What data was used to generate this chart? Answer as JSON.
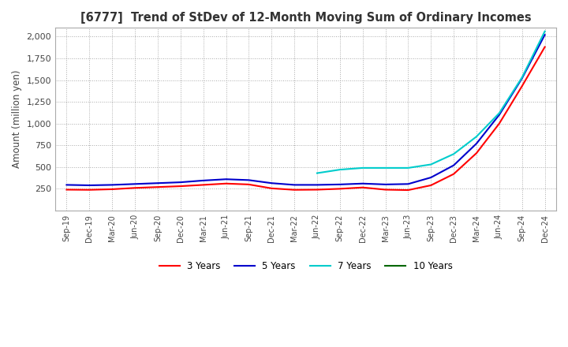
{
  "title": "[6777]  Trend of StDev of 12-Month Moving Sum of Ordinary Incomes",
  "ylabel": "Amount (million yen)",
  "legend_labels": [
    "3 Years",
    "5 Years",
    "7 Years",
    "10 Years"
  ],
  "legend_colors": [
    "#ff0000",
    "#0000cc",
    "#00cccc",
    "#006600"
  ],
  "x_tick_labels": [
    "Sep-19",
    "Dec-19",
    "Mar-20",
    "Jun-20",
    "Sep-20",
    "Dec-20",
    "Mar-21",
    "Jun-21",
    "Sep-21",
    "Dec-21",
    "Mar-22",
    "Jun-22",
    "Sep-22",
    "Dec-22",
    "Mar-23",
    "Jun-23",
    "Sep-23",
    "Dec-23",
    "Mar-24",
    "Jun-24",
    "Sep-24",
    "Dec-24"
  ],
  "ylim": [
    0,
    2100
  ],
  "yticks": [
    250,
    500,
    750,
    1000,
    1250,
    1500,
    1750,
    2000
  ],
  "series_3y": [
    240,
    238,
    245,
    260,
    270,
    280,
    295,
    310,
    300,
    255,
    238,
    240,
    250,
    265,
    240,
    235,
    290,
    420,
    660,
    1000,
    1430,
    1880
  ],
  "series_5y": [
    295,
    290,
    295,
    305,
    315,
    325,
    345,
    360,
    350,
    315,
    295,
    295,
    300,
    310,
    300,
    305,
    380,
    520,
    770,
    1100,
    1520,
    2020
  ],
  "series_7y": [
    null,
    null,
    null,
    null,
    null,
    null,
    null,
    null,
    null,
    null,
    null,
    430,
    470,
    490,
    490,
    490,
    530,
    650,
    850,
    1120,
    1530,
    2060
  ],
  "series_10y": [
    null,
    null,
    null,
    null,
    null,
    null,
    null,
    null,
    null,
    null,
    null,
    null,
    null,
    null,
    null,
    null,
    null,
    null,
    null,
    null,
    null,
    null
  ]
}
